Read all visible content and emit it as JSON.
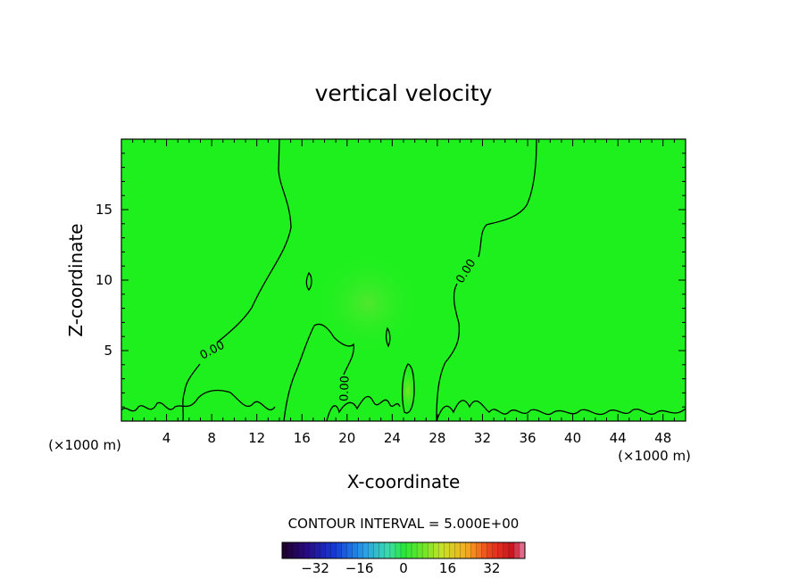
{
  "chart_data": {
    "type": "heatmap",
    "title": "vertical velocity",
    "xlabel": "X-coordinate",
    "ylabel": "Z-coordinate",
    "x_unit": "(×1000 m)",
    "y_unit": "(×1000 m)",
    "xlim": [
      0,
      50
    ],
    "ylim": [
      0,
      20
    ],
    "x_ticks": [
      4,
      8,
      12,
      16,
      20,
      24,
      28,
      32,
      36,
      40,
      44,
      48
    ],
    "y_ticks": [
      5,
      10,
      15
    ],
    "background_color": "#1ef01e",
    "contour_line_color": "#000000",
    "contour_labels": [
      {
        "text": "0.00",
        "x": 8.2,
        "y": 4.8
      },
      {
        "text": "0.00",
        "x": 30.8,
        "y": 10.5
      },
      {
        "text": "0.00",
        "x": 20.1,
        "y": 2.3
      }
    ],
    "contour_interval_label": "CONTOUR INTERVAL = 5.000E+00",
    "colorbar": {
      "range": [
        -44,
        44
      ],
      "ticks": [
        -32,
        -16,
        0,
        16,
        32
      ],
      "tick_labels": [
        "−32",
        "−16",
        "0",
        "16",
        "32"
      ]
    }
  }
}
